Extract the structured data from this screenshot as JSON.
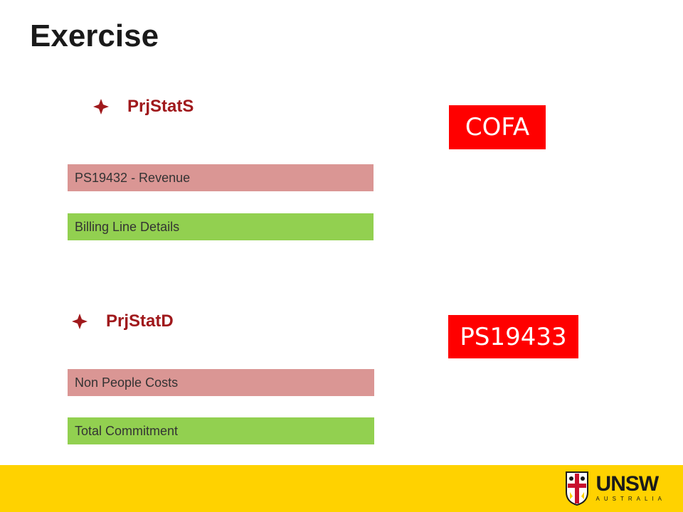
{
  "slide": {
    "title": "Exercise"
  },
  "section1": {
    "heading": "PrjStatS",
    "bars": [
      {
        "label": "PS19432 - Revenue",
        "color": "#da9694"
      },
      {
        "label": "Billing Line Details",
        "color": "#92d050"
      }
    ],
    "tag": "COFA"
  },
  "section2": {
    "heading": "PrjStatD",
    "bars": [
      {
        "label": "Non People Costs",
        "color": "#da9694"
      },
      {
        "label": "Total Commitment",
        "color": "#92d050"
      }
    ],
    "tag": "PS19433"
  },
  "footer": {
    "logo_word": "UNSW",
    "logo_sub": "AUSTRALIA",
    "background": "#ffd200"
  },
  "colors": {
    "heading": "#a0191c",
    "tag_bg": "#ff0000"
  }
}
